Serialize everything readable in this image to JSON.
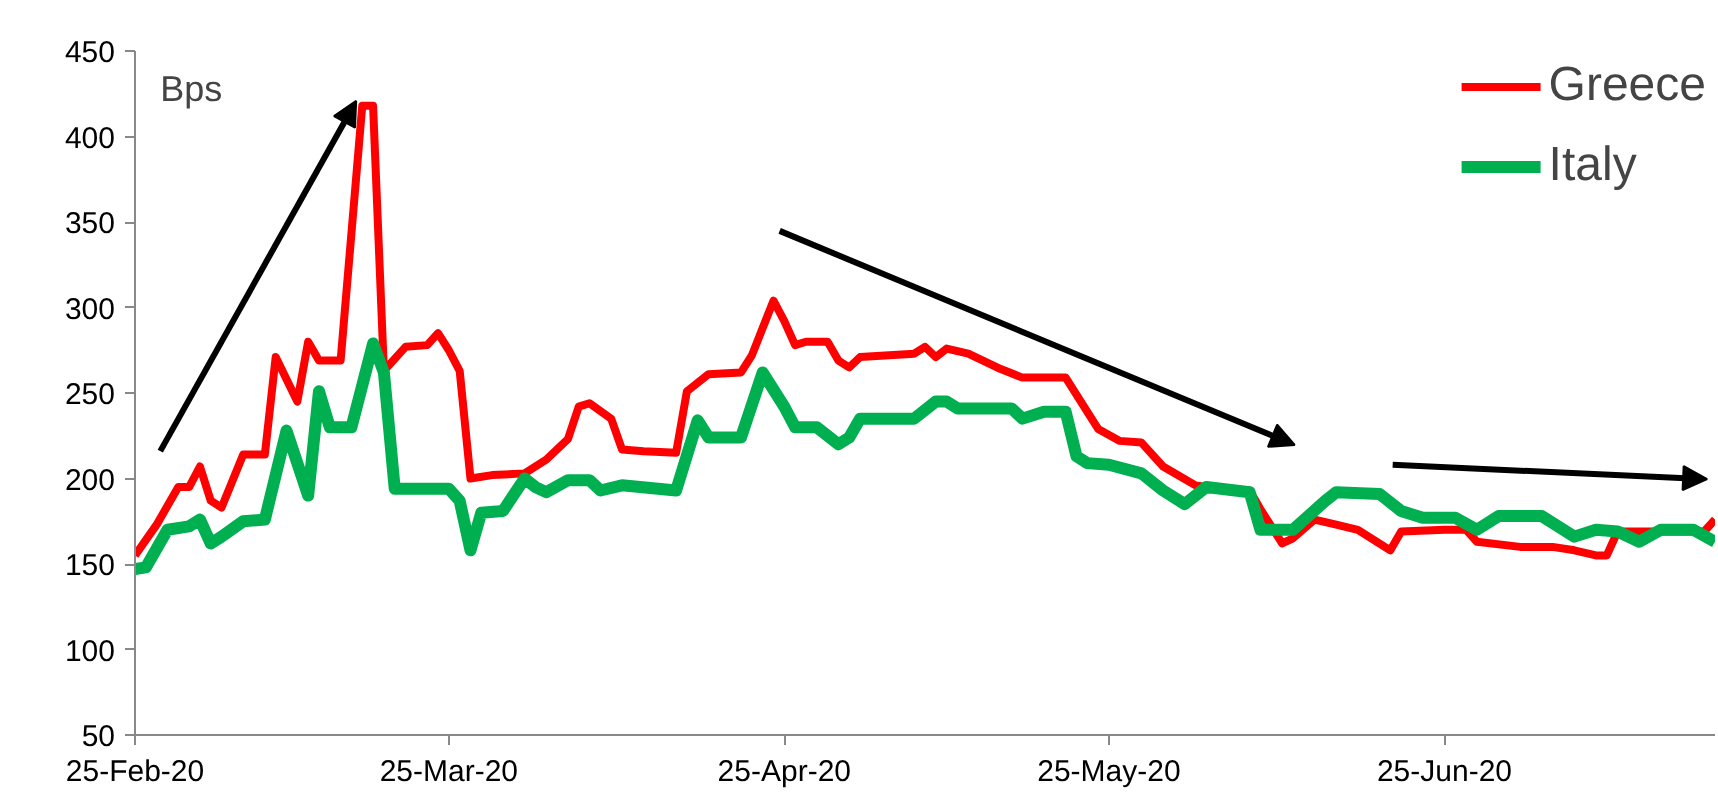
{
  "chart_data": {
    "type": "line",
    "ylabel": "Bps",
    "xlim": [
      "2020-02-25",
      "2020-07-20"
    ],
    "ylim": [
      50,
      450
    ],
    "xticks": [
      {
        "value": "2020-02-25",
        "label": "25-Feb-20"
      },
      {
        "value": "2020-03-25",
        "label": "25-Mar-20"
      },
      {
        "value": "2020-04-25",
        "label": "25-Apr-20"
      },
      {
        "value": "2020-05-25",
        "label": "25-May-20"
      },
      {
        "value": "2020-06-25",
        "label": "25-Jun-20"
      }
    ],
    "yticks": [
      50,
      100,
      150,
      200,
      250,
      300,
      350,
      400,
      450
    ],
    "grid": false,
    "legend": "top right",
    "series": [
      {
        "name": "Greece",
        "color": "#ff0000",
        "x": [
          "2020-02-25",
          "2020-02-27",
          "2020-02-29",
          "2020-03-01",
          "2020-03-02",
          "2020-03-03",
          "2020-03-04",
          "2020-03-06",
          "2020-03-08",
          "2020-03-09",
          "2020-03-11",
          "2020-03-12",
          "2020-03-13",
          "2020-03-15",
          "2020-03-17",
          "2020-03-18",
          "2020-03-19",
          "2020-03-21",
          "2020-03-23",
          "2020-03-24",
          "2020-03-25",
          "2020-03-26",
          "2020-03-27",
          "2020-03-29",
          "2020-04-01",
          "2020-04-03",
          "2020-04-05",
          "2020-04-06",
          "2020-04-07",
          "2020-04-09",
          "2020-04-10",
          "2020-04-12",
          "2020-04-15",
          "2020-04-16",
          "2020-04-18",
          "2020-04-21",
          "2020-04-22",
          "2020-04-24",
          "2020-04-25",
          "2020-04-26",
          "2020-04-27",
          "2020-04-29",
          "2020-04-30",
          "2020-05-01",
          "2020-05-02",
          "2020-05-07",
          "2020-05-08",
          "2020-05-09",
          "2020-05-10",
          "2020-05-12",
          "2020-05-15",
          "2020-05-17",
          "2020-05-21",
          "2020-05-23",
          "2020-05-24",
          "2020-05-26",
          "2020-05-28",
          "2020-05-30",
          "2020-06-02",
          "2020-06-03",
          "2020-06-07",
          "2020-06-08",
          "2020-06-10",
          "2020-06-11",
          "2020-06-13",
          "2020-06-15",
          "2020-06-17",
          "2020-06-20",
          "2020-06-21",
          "2020-06-25",
          "2020-06-27",
          "2020-06-28",
          "2020-07-02",
          "2020-07-05",
          "2020-07-07",
          "2020-07-09",
          "2020-07-10",
          "2020-07-11",
          "2020-07-19",
          "2020-07-20"
        ],
        "values": [
          155,
          173,
          195,
          195,
          207,
          187,
          183,
          214,
          214,
          271,
          245,
          280,
          269,
          269,
          418,
          418,
          263,
          277,
          278,
          285,
          275,
          263,
          200,
          202,
          203,
          211,
          223,
          242,
          244,
          235,
          217,
          216,
          215,
          251,
          261,
          262,
          272,
          304,
          292,
          278,
          280,
          280,
          269,
          265,
          271,
          273,
          277,
          271,
          276,
          273,
          264,
          259,
          259,
          239,
          229,
          222,
          221,
          207,
          196,
          195,
          193,
          182,
          162,
          165,
          176,
          173,
          170,
          158,
          169,
          170,
          170,
          163,
          160,
          160,
          158,
          155,
          155,
          169,
          169,
          176
        ]
      },
      {
        "name": "Italy",
        "color": "#00b050",
        "x": [
          "2020-02-25",
          "2020-02-26",
          "2020-02-28",
          "2020-03-01",
          "2020-03-02",
          "2020-03-03",
          "2020-03-04",
          "2020-03-06",
          "2020-03-08",
          "2020-03-10",
          "2020-03-12",
          "2020-03-13",
          "2020-03-14",
          "2020-03-16",
          "2020-03-18",
          "2020-03-19",
          "2020-03-20",
          "2020-03-25",
          "2020-03-26",
          "2020-03-27",
          "2020-03-28",
          "2020-03-30",
          "2020-04-01",
          "2020-04-02",
          "2020-04-03",
          "2020-04-05",
          "2020-04-07",
          "2020-04-08",
          "2020-04-10",
          "2020-04-15",
          "2020-04-17",
          "2020-04-18",
          "2020-04-21",
          "2020-04-23",
          "2020-04-25",
          "2020-04-26",
          "2020-04-28",
          "2020-04-30",
          "2020-05-01",
          "2020-05-02",
          "2020-05-07",
          "2020-05-09",
          "2020-05-10",
          "2020-05-11",
          "2020-05-16",
          "2020-05-17",
          "2020-05-19",
          "2020-05-21",
          "2020-05-22",
          "2020-05-23",
          "2020-05-25",
          "2020-05-28",
          "2020-05-30",
          "2020-06-01",
          "2020-06-03",
          "2020-06-07",
          "2020-06-08",
          "2020-06-11",
          "2020-06-14",
          "2020-06-15",
          "2020-06-19",
          "2020-06-21",
          "2020-06-23",
          "2020-06-26",
          "2020-06-28",
          "2020-06-30",
          "2020-07-04",
          "2020-07-07",
          "2020-07-09",
          "2020-07-11",
          "2020-07-13",
          "2020-07-15",
          "2020-07-18",
          "2020-07-20"
        ],
        "values": [
          147,
          148,
          170,
          172,
          176,
          162,
          166,
          175,
          176,
          228,
          190,
          251,
          230,
          230,
          279,
          262,
          194,
          194,
          187,
          158,
          180,
          181,
          200,
          195,
          192,
          199,
          199,
          193,
          196,
          193,
          234,
          224,
          224,
          262,
          242,
          230,
          230,
          220,
          224,
          235,
          235,
          245,
          245,
          241,
          241,
          235,
          239,
          239,
          213,
          209,
          208,
          203,
          193,
          185,
          195,
          192,
          170,
          170,
          187,
          192,
          191,
          181,
          177,
          177,
          170,
          178,
          178,
          166,
          170,
          169,
          163,
          170,
          170,
          163
        ]
      }
    ]
  }
}
